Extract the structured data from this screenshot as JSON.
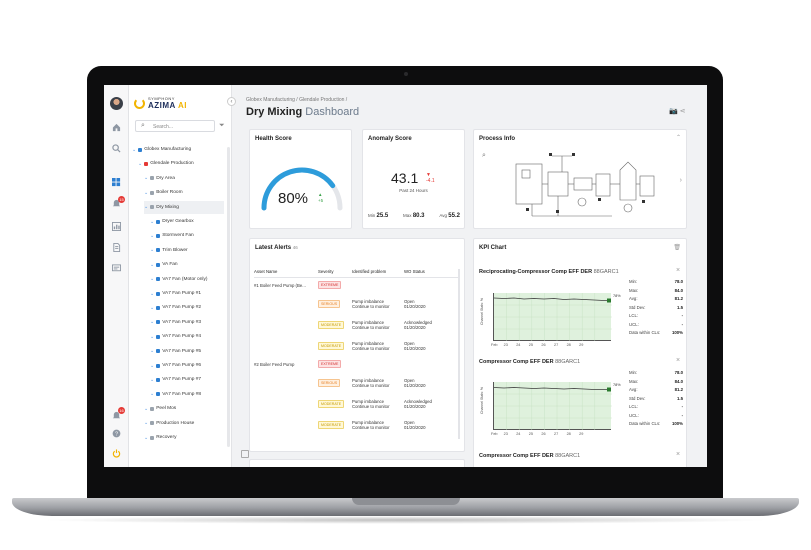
{
  "app": {
    "brand_top": "SYMPHONY",
    "brand_main": "AZIMA",
    "brand_ai": "AI"
  },
  "rail": {
    "badges": [
      "15",
      "16"
    ]
  },
  "tree": {
    "search_placeholder": "Search...",
    "items": [
      {
        "label": "Globex Manufacturing",
        "level": 0
      },
      {
        "label": "Glendale Production",
        "level": 1
      },
      {
        "label": "Dry Area",
        "level": 2
      },
      {
        "label": "Boiler Room",
        "level": 2
      },
      {
        "label": "Dry Mixing",
        "level": 2,
        "selected": true
      },
      {
        "label": "Dryer Gearbox",
        "level": 3
      },
      {
        "label": "Stormvent Fan",
        "level": 3
      },
      {
        "label": "Trim Blower",
        "level": 3
      },
      {
        "label": "VA Fan",
        "level": 3
      },
      {
        "label": "VA7 Fan (Motor only)",
        "level": 3
      },
      {
        "label": "VA7 Fan Pump #1",
        "level": 3
      },
      {
        "label": "VA7 Fan Pump #2",
        "level": 3
      },
      {
        "label": "VA7 Fan Pump #3",
        "level": 3
      },
      {
        "label": "VA7 Fan Pump #4",
        "level": 3
      },
      {
        "label": "VA7 Fan Pump #5",
        "level": 3
      },
      {
        "label": "VA7 Fan Pump #6",
        "level": 3
      },
      {
        "label": "VA7 Fan Pump #7",
        "level": 3
      },
      {
        "label": "VA7 Fan Pump #8",
        "level": 3
      },
      {
        "label": "Peel Mos",
        "level": 2
      },
      {
        "label": "Production House",
        "level": 2
      },
      {
        "label": "Recovery",
        "level": 2
      }
    ]
  },
  "header": {
    "breadcrumb": "Globex Manufacturing  /  Glendale Production  /",
    "title_main": "Dry Mixing",
    "title_sub": "Dashboard"
  },
  "health": {
    "title": "Health Score",
    "value": "80%",
    "delta_arrow": "▲",
    "delta": "+5",
    "fill": 0.8
  },
  "anomaly": {
    "title": "Anomaly Score",
    "value": "43.1",
    "delta_arrow": "▼",
    "delta": "-4.1",
    "subtitle": "Past 24 Hours",
    "min_label": "Min",
    "min": "25.5",
    "max_label": "Max",
    "max": "80.3",
    "avg_label": "Avg",
    "avg": "55.2"
  },
  "process": {
    "title": "Process Info"
  },
  "alerts": {
    "title": "Latest Alerts",
    "count": "46",
    "columns": [
      "Asset Name",
      "Severity",
      "Identified problem",
      "WO Status"
    ],
    "rows": [
      {
        "asset": "#1 Boiler Feed Pump (Be...",
        "severity": "EXTREME",
        "sev": "extreme",
        "problem": "",
        "problem2": "",
        "status": "",
        "status2": ""
      },
      {
        "asset": "",
        "severity": "SERIOUS",
        "sev": "serious",
        "problem": "Pump imbalance",
        "problem2": "Continue to monitor",
        "status": "Open",
        "status2": "01/20/2020"
      },
      {
        "asset": "",
        "severity": "MODERATE",
        "sev": "moderate",
        "problem": "Pump imbalance",
        "problem2": "Continue to monitor",
        "status": "Acknowledged",
        "status2": "01/20/2020"
      },
      {
        "asset": "",
        "severity": "MODERATE",
        "sev": "moderate",
        "problem": "Pump imbalance",
        "problem2": "Continue to monitor",
        "status": "Open",
        "status2": "01/20/2020"
      },
      {
        "asset": "#2 Boiler Feed Pump",
        "severity": "EXTREME",
        "sev": "extreme",
        "problem": "",
        "problem2": "",
        "status": "",
        "status2": ""
      },
      {
        "asset": "",
        "severity": "SERIOUS",
        "sev": "serious",
        "problem": "Pump imbalance",
        "problem2": "Continue to monitor",
        "status": "Open",
        "status2": "01/20/2020"
      },
      {
        "asset": "",
        "severity": "MODERATE",
        "sev": "moderate",
        "problem": "Pump imbalance",
        "problem2": "Continue to monitor",
        "status": "Acknowledged",
        "status2": "01/20/2020"
      },
      {
        "asset": "",
        "severity": "MODERATE",
        "sev": "moderate",
        "problem": "Pump imbalance",
        "problem2": "Continue to monitor",
        "status": "Open",
        "status2": "01/20/2020"
      }
    ]
  },
  "kpi": {
    "title": "KPI Chart",
    "charts": [
      {
        "name": "Reciprocating-Compressor Comp EFF DER",
        "code": "88GARC1",
        "ylabel": "Channel Stats: %",
        "end_label": "78%",
        "x_ticks": [
          "Feb",
          "23",
          "24",
          "25",
          "26",
          "27",
          "28",
          "29"
        ],
        "stats": [
          [
            "Min:",
            "78.0"
          ],
          [
            "Max:",
            "84.0"
          ],
          [
            "Avg:",
            "81.2"
          ],
          [
            "Std Dev:",
            "1.5"
          ],
          [
            "LCL:",
            "-"
          ],
          [
            "UCL:",
            "-"
          ],
          [
            "Data within CLs:",
            "100%"
          ]
        ]
      },
      {
        "name": "Compressor Comp EFF DER",
        "code": "88GARC1",
        "ylabel": "Channel Stats: %",
        "end_label": "78%",
        "x_ticks": [
          "Feb",
          "23",
          "24",
          "25",
          "26",
          "27",
          "28",
          "29"
        ],
        "stats": [
          [
            "Min:",
            "78.0"
          ],
          [
            "Max:",
            "84.0"
          ],
          [
            "Avg:",
            "81.2"
          ],
          [
            "Std Dev:",
            "1.5"
          ],
          [
            "LCL:",
            "-"
          ],
          [
            "UCL:",
            "-"
          ],
          [
            "Data within CLs:",
            "100%"
          ]
        ]
      },
      {
        "name": "Compressor Comp EFF DER",
        "code": "88GARC1"
      }
    ]
  },
  "colors": {
    "accent": "#2d9cdb",
    "brand_yellow": "#f2b400",
    "plot_fill": "#dff1dd",
    "extreme": "#d32f2f",
    "serious": "#e67e22",
    "moderate": "#c59a00"
  }
}
